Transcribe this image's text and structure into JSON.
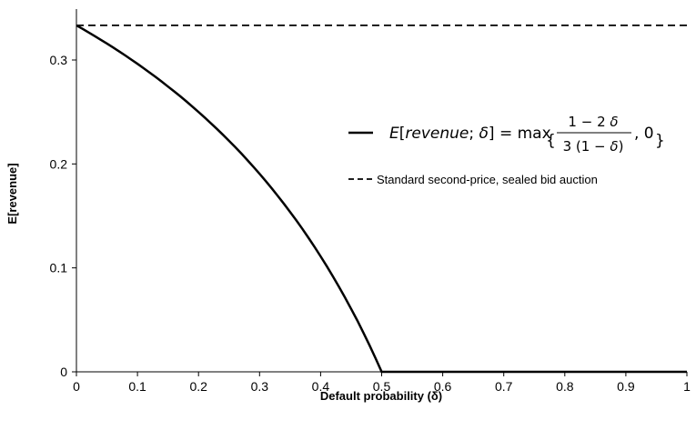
{
  "chart_data": {
    "type": "line",
    "xlabel": "Default probability (δ)",
    "ylabel": "E[revenue]",
    "xlim": [
      0,
      1
    ],
    "ylim": [
      0,
      0.35
    ],
    "x_ticks": [
      0,
      0.1,
      0.2,
      0.3,
      0.4,
      0.5,
      0.6,
      0.7,
      0.8,
      0.9,
      1
    ],
    "x_tick_labels": [
      "0",
      "0.1",
      "0.2",
      "0.3",
      "0.4",
      "0.5",
      "0.6",
      "0.7",
      "0.8",
      "0.9",
      "1"
    ],
    "y_ticks": [
      0,
      0.1,
      0.2,
      0.3
    ],
    "y_tick_labels": [
      "0",
      "0.1",
      "0.2",
      "0.3"
    ],
    "grid": false,
    "legend_position": "right",
    "series": [
      {
        "name": "E[revenue; δ] = max {(1 − 2δ) / (3(1 − δ)), 0}",
        "style": "solid",
        "color": "#000000",
        "x": [
          0,
          0.05,
          0.1,
          0.15,
          0.2,
          0.25,
          0.3,
          0.35,
          0.4,
          0.45,
          0.5,
          0.6,
          0.7,
          0.8,
          0.9,
          1
        ],
        "y": [
          0.3333,
          0.3158,
          0.2963,
          0.2745,
          0.25,
          0.2222,
          0.1905,
          0.1538,
          0.1111,
          0.0606,
          0,
          0,
          0,
          0,
          0,
          0
        ]
      },
      {
        "name": "Standard second-price, sealed bid auction",
        "style": "dashed",
        "color": "#000000",
        "x": [
          0,
          1
        ],
        "y": [
          0.3333,
          0.3333
        ]
      }
    ]
  }
}
